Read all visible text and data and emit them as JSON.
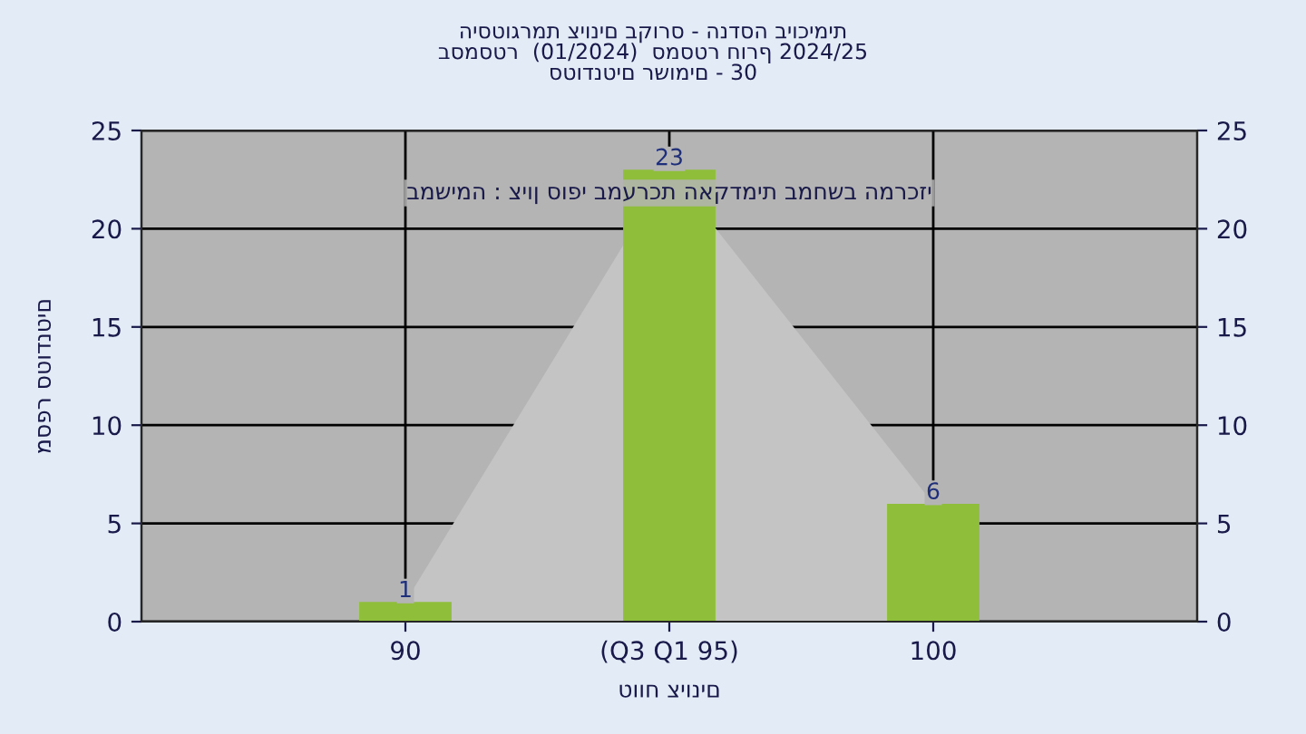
{
  "chart_data": {
    "type": "bar",
    "title": "היסטוגרמת ציונים בקורס - הנדסה ביוכימית\nבסמסטר  (01/2024)  סמסטר חורף 2024/25\nסטודנטים רשומים - 30",
    "xlabel": "טווח ציונים",
    "ylabel": "מספר סטודנטים",
    "annotations": [
      "במשימה : ציון סופי במערכת האקדמית במחשב המרכזי"
    ],
    "categories": [
      "90",
      "(Q3 Q1 95)",
      "100"
    ],
    "series": [
      {
        "type": "area",
        "color": "#c4c4c4",
        "values": [
          1,
          23,
          6
        ],
        "value_labels": [
          null,
          null,
          null
        ]
      },
      {
        "color": "#8fbf3a",
        "values": [
          1,
          23,
          6
        ],
        "value_labels": [
          "1",
          "23",
          "6"
        ]
      }
    ],
    "ylim": [
      0,
      25
    ],
    "yticks": [
      0,
      5,
      10,
      15,
      20,
      25
    ],
    "y2lim": [
      0,
      25
    ],
    "y2ticks": [
      0,
      5,
      10,
      15,
      20,
      25
    ],
    "grid": true
  }
}
